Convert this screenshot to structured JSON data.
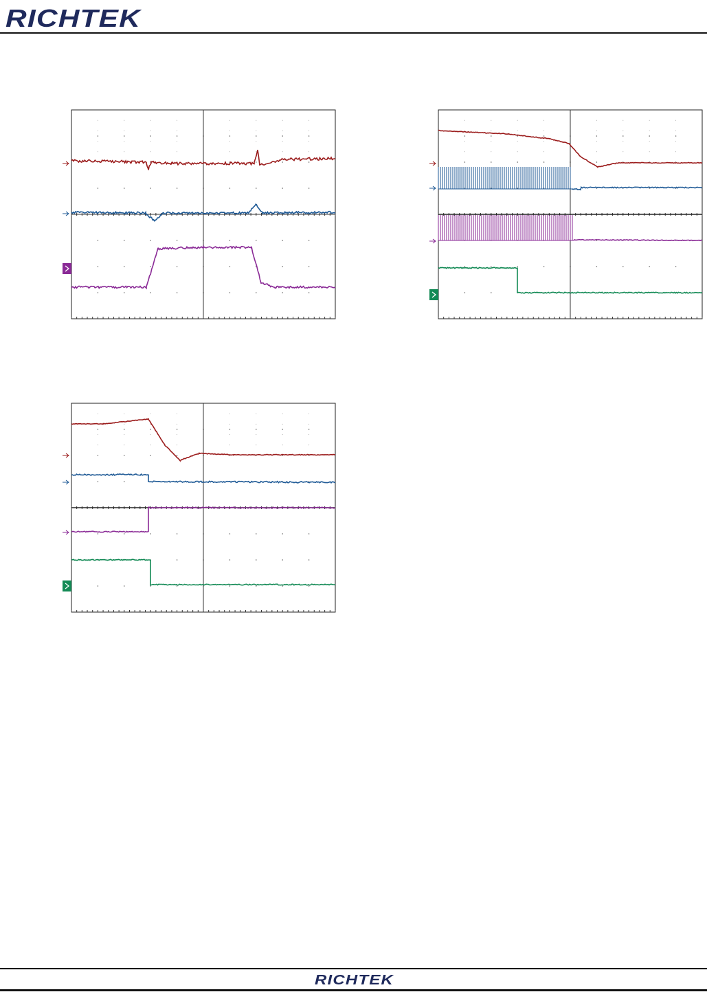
{
  "header": {
    "logo": "RICHTEK"
  },
  "footer": {
    "logo": "RICHTEK"
  }
}
